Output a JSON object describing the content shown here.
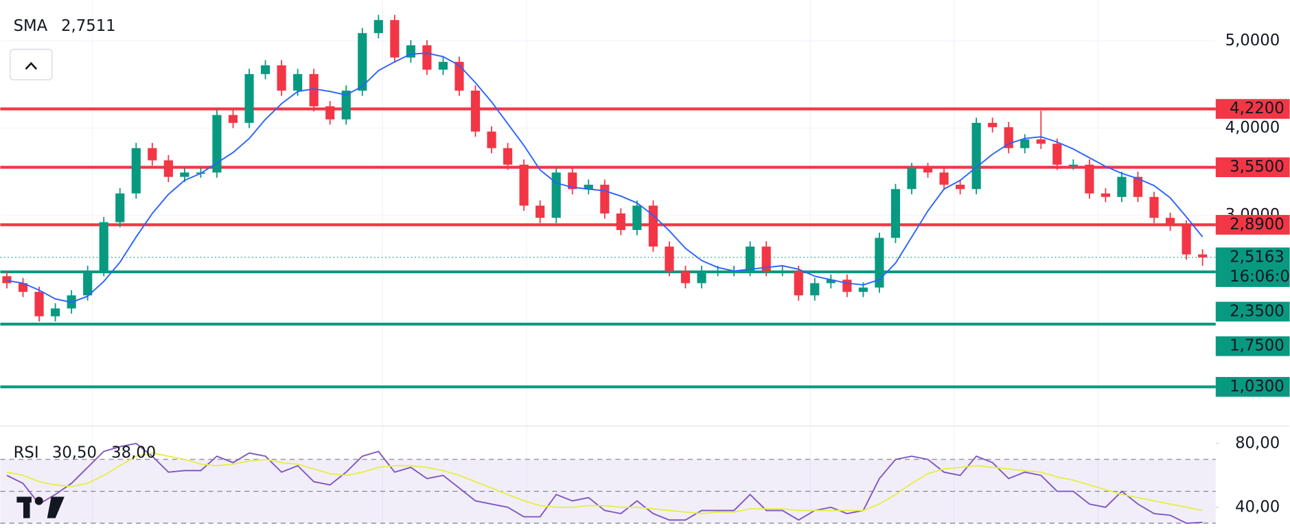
{
  "chart_data": [
    {
      "type": "candlestick",
      "indicator": {
        "name": "SMA",
        "value": 2.7511,
        "value_label": "2,7511",
        "color": "#2962ff"
      },
      "up_color": "#089981",
      "down_color": "#f23645",
      "candles": [
        [
          2.3,
          2.36,
          2.16,
          2.22
        ],
        [
          2.22,
          2.28,
          2.06,
          2.12
        ],
        [
          2.12,
          2.18,
          1.78,
          1.84
        ],
        [
          1.84,
          1.99,
          1.78,
          1.93
        ],
        [
          1.93,
          2.14,
          1.87,
          2.08
        ],
        [
          2.08,
          2.42,
          2.02,
          2.36
        ],
        [
          2.36,
          2.98,
          2.3,
          2.92
        ],
        [
          2.92,
          3.31,
          2.86,
          3.25
        ],
        [
          3.25,
          3.83,
          3.19,
          3.77
        ],
        [
          3.77,
          3.83,
          3.57,
          3.63
        ],
        [
          3.63,
          3.69,
          3.38,
          3.44
        ],
        [
          3.44,
          3.55,
          3.38,
          3.49
        ],
        [
          3.49,
          3.55,
          3.43,
          3.49
        ],
        [
          3.49,
          4.21,
          3.43,
          4.15
        ],
        [
          4.15,
          4.21,
          4.0,
          4.06
        ],
        [
          4.06,
          4.68,
          4.0,
          4.62
        ],
        [
          4.62,
          4.78,
          4.56,
          4.72
        ],
        [
          4.72,
          4.78,
          4.37,
          4.43
        ],
        [
          4.43,
          4.68,
          4.37,
          4.62
        ],
        [
          4.62,
          4.68,
          4.19,
          4.25
        ],
        [
          4.25,
          4.31,
          4.04,
          4.1
        ],
        [
          4.1,
          4.49,
          4.04,
          4.43
        ],
        [
          4.43,
          5.15,
          4.37,
          5.09
        ],
        [
          5.09,
          5.3,
          5.03,
          5.24
        ],
        [
          5.24,
          5.3,
          4.75,
          4.81
        ],
        [
          4.81,
          5.01,
          4.75,
          4.95
        ],
        [
          4.95,
          5.01,
          4.61,
          4.67
        ],
        [
          4.67,
          4.82,
          4.61,
          4.76
        ],
        [
          4.76,
          4.82,
          4.37,
          4.43
        ],
        [
          4.43,
          4.49,
          3.9,
          3.96
        ],
        [
          3.96,
          4.02,
          3.71,
          3.77
        ],
        [
          3.77,
          3.83,
          3.52,
          3.58
        ],
        [
          3.58,
          3.64,
          3.05,
          3.11
        ],
        [
          3.11,
          3.17,
          2.91,
          2.97
        ],
        [
          2.97,
          3.55,
          2.91,
          3.49
        ],
        [
          3.49,
          3.55,
          3.24,
          3.3
        ],
        [
          3.3,
          3.41,
          3.24,
          3.35
        ],
        [
          3.35,
          3.41,
          2.96,
          3.02
        ],
        [
          3.02,
          3.08,
          2.77,
          2.83
        ],
        [
          2.83,
          3.17,
          2.77,
          3.11
        ],
        [
          3.11,
          3.17,
          2.58,
          2.64
        ],
        [
          2.64,
          2.7,
          2.3,
          2.36
        ],
        [
          2.36,
          2.42,
          2.16,
          2.22
        ],
        [
          2.22,
          2.42,
          2.16,
          2.36
        ],
        [
          2.36,
          2.42,
          2.3,
          2.36
        ],
        [
          2.36,
          2.42,
          2.3,
          2.36
        ],
        [
          2.36,
          2.7,
          2.3,
          2.64
        ],
        [
          2.64,
          2.7,
          2.3,
          2.36
        ],
        [
          2.36,
          2.42,
          2.3,
          2.36
        ],
        [
          2.36,
          2.42,
          2.02,
          2.08
        ],
        [
          2.08,
          2.28,
          2.02,
          2.22
        ],
        [
          2.22,
          2.32,
          2.16,
          2.26
        ],
        [
          2.26,
          2.32,
          2.06,
          2.12
        ],
        [
          2.12,
          2.23,
          2.06,
          2.17
        ],
        [
          2.17,
          2.8,
          2.11,
          2.74
        ],
        [
          2.74,
          3.36,
          2.68,
          3.3
        ],
        [
          3.3,
          3.6,
          3.24,
          3.54
        ],
        [
          3.54,
          3.6,
          3.43,
          3.49
        ],
        [
          3.49,
          3.55,
          3.29,
          3.35
        ],
        [
          3.35,
          3.41,
          3.24,
          3.3
        ],
        [
          3.3,
          4.12,
          3.24,
          4.06
        ],
        [
          4.06,
          4.12,
          3.95,
          4.01
        ],
        [
          4.01,
          4.07,
          3.71,
          3.77
        ],
        [
          3.77,
          3.93,
          3.71,
          3.87
        ],
        [
          3.87,
          4.2,
          3.76,
          3.82
        ],
        [
          3.82,
          3.88,
          3.52,
          3.58
        ],
        [
          3.58,
          3.64,
          3.52,
          3.58
        ],
        [
          3.58,
          3.64,
          3.19,
          3.25
        ],
        [
          3.25,
          3.31,
          3.15,
          3.21
        ],
        [
          3.21,
          3.5,
          3.15,
          3.44
        ],
        [
          3.44,
          3.5,
          3.15,
          3.21
        ],
        [
          3.21,
          3.27,
          2.91,
          2.97
        ],
        [
          2.97,
          3.03,
          2.82,
          2.88
        ],
        [
          2.88,
          2.94,
          2.49,
          2.55
        ],
        [
          2.55,
          2.61,
          2.42,
          2.5163
        ]
      ],
      "sma": [
        2.25,
        2.22,
        2.14,
        2.04,
        2.0,
        2.07,
        2.24,
        2.46,
        2.75,
        3.02,
        3.24,
        3.4,
        3.48,
        3.6,
        3.72,
        3.88,
        4.1,
        4.28,
        4.42,
        4.45,
        4.42,
        4.38,
        4.48,
        4.66,
        4.76,
        4.85,
        4.86,
        4.82,
        4.72,
        4.52,
        4.3,
        4.05,
        3.8,
        3.52,
        3.37,
        3.32,
        3.3,
        3.28,
        3.22,
        3.14,
        3.0,
        2.82,
        2.62,
        2.48,
        2.4,
        2.36,
        2.38,
        2.4,
        2.42,
        2.38,
        2.3,
        2.26,
        2.22,
        2.2,
        2.26,
        2.45,
        2.75,
        3.05,
        3.3,
        3.4,
        3.55,
        3.7,
        3.82,
        3.88,
        3.9,
        3.84,
        3.76,
        3.66,
        3.56,
        3.48,
        3.42,
        3.34,
        3.2,
        2.98,
        2.7511
      ],
      "ylim": [
        0.59,
        5.47
      ],
      "yticks": [
        {
          "value": 5,
          "label": "5,0000"
        },
        {
          "value": 4,
          "label": "4,0000"
        },
        {
          "value": 3,
          "label": "3,0000"
        }
      ],
      "levels": [
        {
          "value": 4.22,
          "label": "4,2200",
          "color": "#f23645"
        },
        {
          "value": 3.55,
          "label": "3,5500",
          "color": "#f23645"
        },
        {
          "value": 2.89,
          "label": "2,8900",
          "color": "#f23645"
        },
        {
          "value": 2.35,
          "label": "2,3500",
          "color": "#089981"
        },
        {
          "value": 1.75,
          "label": "1,7500",
          "color": "#089981"
        },
        {
          "value": 1.03,
          "label": "1,0300",
          "color": "#089981"
        }
      ],
      "current": {
        "value": 2.5163,
        "label": "2,5163",
        "countdown": "16:06:0"
      }
    },
    {
      "type": "line",
      "title": "RSI",
      "series": [
        {
          "name": "RSI",
          "color": "#7e57c2",
          "value": 30.5,
          "value_label": "30,50",
          "values": [
            60,
            55,
            42,
            48,
            55,
            65,
            75,
            78,
            80,
            72,
            62,
            63,
            63,
            72,
            68,
            74,
            72,
            62,
            66,
            56,
            54,
            62,
            72,
            75,
            62,
            65,
            58,
            60,
            52,
            44,
            42,
            40,
            34,
            34,
            48,
            44,
            46,
            38,
            36,
            44,
            36,
            32,
            32,
            38,
            38,
            38,
            48,
            38,
            38,
            32,
            38,
            40,
            36,
            38,
            58,
            70,
            72,
            70,
            62,
            60,
            72,
            68,
            58,
            62,
            60,
            50,
            50,
            42,
            40,
            50,
            42,
            36,
            35,
            30,
            30.5
          ]
        },
        {
          "color": "#e6ee4a",
          "value": 38,
          "value_label": "38,00",
          "values": [
            62,
            60,
            56,
            54,
            53,
            55,
            60,
            66,
            72,
            74,
            72,
            70,
            67,
            66,
            67,
            69,
            70,
            68,
            67,
            64,
            61,
            60,
            62,
            65,
            66,
            66,
            65,
            63,
            60,
            56,
            52,
            48,
            44,
            41,
            40,
            40,
            41,
            41,
            40,
            40,
            39,
            38,
            37,
            36,
            37,
            37,
            39,
            39,
            39,
            38,
            38,
            38,
            38,
            38,
            42,
            48,
            55,
            61,
            64,
            65,
            66,
            65,
            64,
            63,
            62,
            59,
            57,
            54,
            51,
            48,
            46,
            44,
            42,
            40,
            38
          ]
        }
      ],
      "ylim": [
        27,
        90.4
      ],
      "yticks": [
        {
          "value": 80,
          "label": "80,00"
        },
        {
          "value": 40,
          "label": "40,00"
        }
      ],
      "band": [
        70,
        30
      ],
      "guides": [
        70,
        50,
        30
      ]
    }
  ]
}
